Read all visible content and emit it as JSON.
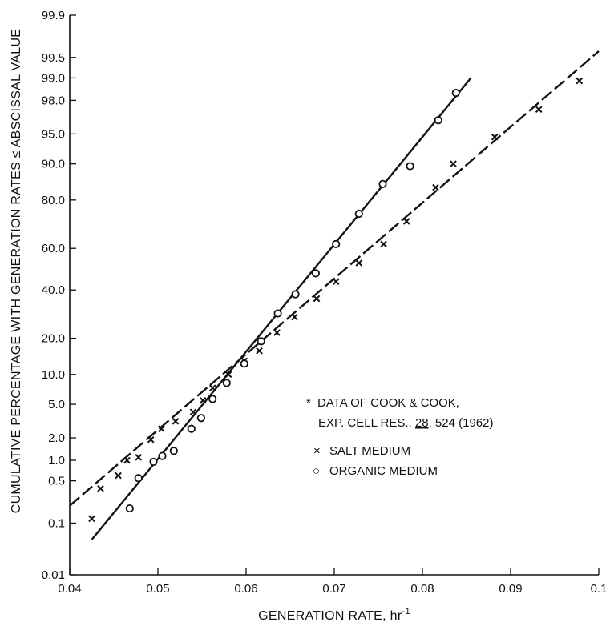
{
  "chart_data": {
    "type": "scatter",
    "xlabel": "GENERATION RATE, hr",
    "xlabel_superscript": "-1",
    "ylabel": "CUMULATIVE PERCENTAGE WITH GENERATION RATES ≤ ABSCISSAL VALUE",
    "xlim": [
      0.04,
      0.1
    ],
    "ylim": [
      0.01,
      99.9
    ],
    "y_scale": "normal-probability",
    "grid": false,
    "x_ticks": [
      {
        "value": 0.04,
        "label": "0.04"
      },
      {
        "value": 0.05,
        "label": "0.05"
      },
      {
        "value": 0.06,
        "label": "0.06"
      },
      {
        "value": 0.07,
        "label": "0.07"
      },
      {
        "value": 0.08,
        "label": "0.08"
      },
      {
        "value": 0.09,
        "label": "0.09"
      },
      {
        "value": 0.1,
        "label": "0.1"
      }
    ],
    "y_ticks": [
      {
        "value": 0.01,
        "label": "0.01"
      },
      {
        "value": 0.1,
        "label": "0.1"
      },
      {
        "value": 0.5,
        "label": "0.5"
      },
      {
        "value": 1.0,
        "label": "1.0"
      },
      {
        "value": 2.0,
        "label": "2.0"
      },
      {
        "value": 5.0,
        "label": "5.0"
      },
      {
        "value": 10.0,
        "label": "10.0"
      },
      {
        "value": 20.0,
        "label": "20.0"
      },
      {
        "value": 40.0,
        "label": "40.0"
      },
      {
        "value": 60.0,
        "label": "60.0"
      },
      {
        "value": 80.0,
        "label": "80.0"
      },
      {
        "value": 90.0,
        "label": "90.0"
      },
      {
        "value": 95.0,
        "label": "95.0"
      },
      {
        "value": 98.0,
        "label": "98.0"
      },
      {
        "value": 99.0,
        "label": "99.0"
      },
      {
        "value": 99.5,
        "label": "99.5"
      },
      {
        "value": 99.9,
        "label": "99.9"
      }
    ],
    "annotation": {
      "marker": "*",
      "line1": "DATA OF COOK & COOK,",
      "line2_prefix": "EXP. CELL RES., ",
      "line2_underlined": "28",
      "line2_suffix": ", 524 (1962)"
    },
    "legend": [
      {
        "symbol": "×",
        "label": "SALT MEDIUM"
      },
      {
        "symbol": "○",
        "label": "ORGANIC MEDIUM"
      }
    ],
    "series": [
      {
        "name": "SALT MEDIUM",
        "marker": "x",
        "line_style": "dashed",
        "fit_line": [
          [
            0.04,
            0.2
          ],
          [
            0.1,
            99.6
          ]
        ],
        "points": [
          [
            0.0425,
            0.12
          ],
          [
            0.0435,
            0.38
          ],
          [
            0.0455,
            0.6
          ],
          [
            0.0465,
            1.0
          ],
          [
            0.0478,
            1.1
          ],
          [
            0.0492,
            1.9
          ],
          [
            0.0504,
            2.6
          ],
          [
            0.052,
            3.2
          ],
          [
            0.054,
            4.1
          ],
          [
            0.0551,
            5.5
          ],
          [
            0.0562,
            7.4
          ],
          [
            0.058,
            10.0
          ],
          [
            0.0598,
            13.2
          ],
          [
            0.0615,
            16.0
          ],
          [
            0.0635,
            22.0
          ],
          [
            0.0655,
            28.0
          ],
          [
            0.068,
            36.0
          ],
          [
            0.0702,
            44.0
          ],
          [
            0.0728,
            53.0
          ],
          [
            0.0756,
            62.0
          ],
          [
            0.0782,
            72.0
          ],
          [
            0.0815,
            84.0
          ],
          [
            0.0835,
            90.0
          ],
          [
            0.0882,
            94.6
          ],
          [
            0.0932,
            97.4
          ],
          [
            0.0978,
            98.9
          ]
        ]
      },
      {
        "name": "ORGANIC MEDIUM",
        "marker": "o",
        "line_style": "solid",
        "fit_line": [
          [
            0.0425,
            0.05
          ],
          [
            0.0855,
            99.0
          ]
        ],
        "points": [
          [
            0.0468,
            0.18
          ],
          [
            0.0478,
            0.55
          ],
          [
            0.0495,
            0.95
          ],
          [
            0.0505,
            1.15
          ],
          [
            0.0518,
            1.35
          ],
          [
            0.0538,
            2.6
          ],
          [
            0.0549,
            3.5
          ],
          [
            0.0562,
            5.7
          ],
          [
            0.0578,
            8.3
          ],
          [
            0.0598,
            12.5
          ],
          [
            0.0617,
            19.0
          ],
          [
            0.0636,
            29.5
          ],
          [
            0.0656,
            38.0
          ],
          [
            0.0679,
            48.0
          ],
          [
            0.0702,
            62.0
          ],
          [
            0.0728,
            75.0
          ],
          [
            0.0755,
            85.0
          ],
          [
            0.0786,
            89.5
          ],
          [
            0.0818,
            96.5
          ],
          [
            0.0838,
            98.4
          ]
        ]
      }
    ]
  }
}
